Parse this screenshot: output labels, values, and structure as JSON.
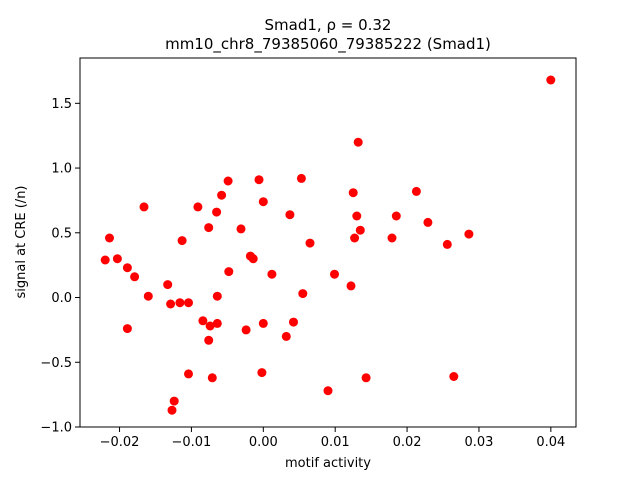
{
  "chart_data": {
    "type": "scatter",
    "title": "Smad1, ρ = 0.32",
    "subtitle": "mm10_chr8_79385060_79385222 (Smad1)",
    "xlabel": "motif activity",
    "ylabel": "signal at CRE (/n)",
    "xlim": [
      -0.0255,
      0.0435
    ],
    "ylim": [
      -1.0,
      1.85
    ],
    "x_ticks": [
      -0.02,
      -0.01,
      0.0,
      0.01,
      0.02,
      0.03,
      0.04
    ],
    "x_tick_labels": [
      "−0.02",
      "−0.01",
      "0.00",
      "0.01",
      "0.02",
      "0.03",
      "0.04"
    ],
    "y_ticks": [
      -1.0,
      -0.5,
      0.0,
      0.5,
      1.0,
      1.5
    ],
    "y_tick_labels": [
      "−1.0",
      "−0.5",
      "0.0",
      "0.5",
      "1.0",
      "1.5"
    ],
    "grid": false,
    "marker_color": "#ff0000",
    "points": [
      [
        -0.022,
        0.29
      ],
      [
        -0.0214,
        0.46
      ],
      [
        -0.0203,
        0.3
      ],
      [
        -0.0189,
        0.23
      ],
      [
        -0.0179,
        0.16
      ],
      [
        -0.0189,
        -0.24
      ],
      [
        -0.0166,
        0.7
      ],
      [
        -0.016,
        0.01
      ],
      [
        -0.0133,
        0.1
      ],
      [
        -0.0129,
        -0.05
      ],
      [
        -0.0127,
        -0.87
      ],
      [
        -0.0124,
        -0.8
      ],
      [
        -0.0116,
        -0.04
      ],
      [
        -0.0113,
        0.44
      ],
      [
        -0.0104,
        -0.04
      ],
      [
        -0.0104,
        -0.59
      ],
      [
        -0.0091,
        0.7
      ],
      [
        -0.0084,
        -0.18
      ],
      [
        -0.0076,
        0.54
      ],
      [
        -0.0076,
        -0.33
      ],
      [
        -0.0074,
        -0.22
      ],
      [
        -0.0071,
        -0.62
      ],
      [
        -0.0065,
        0.66
      ],
      [
        -0.0064,
        0.01
      ],
      [
        -0.0064,
        -0.2
      ],
      [
        -0.0058,
        0.79
      ],
      [
        -0.0049,
        0.9
      ],
      [
        -0.0048,
        0.2
      ],
      [
        -0.0031,
        0.53
      ],
      [
        -0.0024,
        -0.25
      ],
      [
        -0.0018,
        0.32
      ],
      [
        -0.0014,
        0.3
      ],
      [
        -0.0006,
        0.91
      ],
      [
        -0.0002,
        -0.58
      ],
      [
        0.0,
        0.74
      ],
      [
        0.0,
        -0.2
      ],
      [
        0.0012,
        0.18
      ],
      [
        0.0032,
        -0.3
      ],
      [
        0.0037,
        0.64
      ],
      [
        0.0042,
        -0.19
      ],
      [
        0.0053,
        0.92
      ],
      [
        0.0055,
        0.03
      ],
      [
        0.0065,
        0.42
      ],
      [
        0.009,
        -0.72
      ],
      [
        0.0099,
        0.18
      ],
      [
        0.0122,
        0.09
      ],
      [
        0.0125,
        0.81
      ],
      [
        0.0127,
        0.46
      ],
      [
        0.013,
        0.63
      ],
      [
        0.0132,
        1.2
      ],
      [
        0.0135,
        0.52
      ],
      [
        0.0143,
        -0.62
      ],
      [
        0.0179,
        0.46
      ],
      [
        0.0185,
        0.63
      ],
      [
        0.0213,
        0.82
      ],
      [
        0.0229,
        0.58
      ],
      [
        0.0256,
        0.41
      ],
      [
        0.0265,
        -0.61
      ],
      [
        0.0286,
        0.49
      ],
      [
        0.04,
        1.68
      ]
    ]
  }
}
